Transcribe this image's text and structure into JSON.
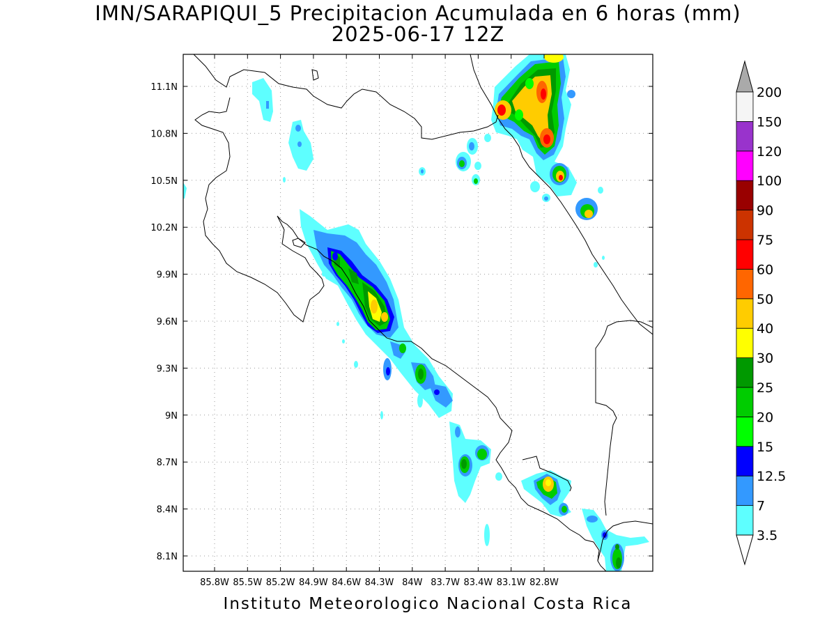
{
  "title": {
    "line1": "IMN/SARAPIQUI_5 Precipitacion Acumulada en 6 horas (mm)",
    "line2": "2025-06-17 12Z"
  },
  "footer": "Instituto Meteorologico Nacional Costa Rica",
  "axes": {
    "x_ticks": [
      "85.8W",
      "85.5W",
      "85.2W",
      "84.9W",
      "84.6W",
      "84.3W",
      "84W",
      "83.7W",
      "83.4W",
      "83.1W",
      "82.8W"
    ],
    "y_ticks": [
      "11.1N",
      "10.8N",
      "10.5N",
      "10.2N",
      "9.9N",
      "9.6N",
      "9.3N",
      "9N",
      "8.7N",
      "8.4N",
      "8.1N"
    ],
    "grid": "dotted"
  },
  "colorbar": {
    "labels": [
      "3.5",
      "7",
      "12.5",
      "15",
      "20",
      "25",
      "30",
      "40",
      "50",
      "60",
      "75",
      "90",
      "100",
      "120",
      "150",
      "200"
    ],
    "colors": [
      "#5effff",
      "#3399ff",
      "#0000ff",
      "#00ff00",
      "#00cc00",
      "#009900",
      "#ffff00",
      "#ffcc00",
      "#ff6600",
      "#ff0000",
      "#cc3300",
      "#990000",
      "#ff00ff",
      "#9933cc",
      "#f5f5f5"
    ],
    "low_triangle_color": "#ffffff",
    "high_triangle_color": "#aaaaaa"
  }
}
